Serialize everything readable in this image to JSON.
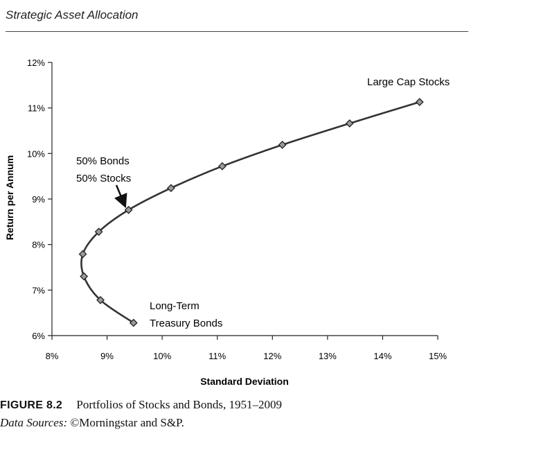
{
  "header": {
    "title": "Strategic Asset Allocation"
  },
  "chart_data": {
    "type": "line",
    "xlabel": "Standard Deviation",
    "ylabel": "Return per Annum",
    "xlim": [
      8,
      15
    ],
    "ylim": [
      6,
      12
    ],
    "x_ticks": [
      "8%",
      "9%",
      "10%",
      "11%",
      "12%",
      "13%",
      "14%",
      "15%"
    ],
    "y_ticks": [
      "6%",
      "7%",
      "8%",
      "9%",
      "10%",
      "11%",
      "12%"
    ],
    "series": [
      {
        "x": [
          9.48,
          8.88,
          8.58,
          8.56,
          8.85,
          9.39,
          10.16,
          11.09,
          12.18,
          13.4,
          14.67
        ],
        "y": [
          6.28,
          6.78,
          7.3,
          7.79,
          8.28,
          8.76,
          9.24,
          9.72,
          10.19,
          10.66,
          11.13
        ]
      }
    ],
    "grid": false,
    "annotations": [
      {
        "lines": [
          "Large Cap Stocks"
        ]
      },
      {
        "lines": [
          "50% Bonds",
          "50% Stocks"
        ]
      },
      {
        "lines": [
          "Long-Term",
          "Treasury Bonds"
        ]
      }
    ]
  },
  "caption": {
    "label": "FIGURE 8.2",
    "text": "Portfolios of Stocks and Bonds, 1951–2009",
    "source_label": "Data Sources:",
    "source_text": "©Morningstar and S&P."
  }
}
